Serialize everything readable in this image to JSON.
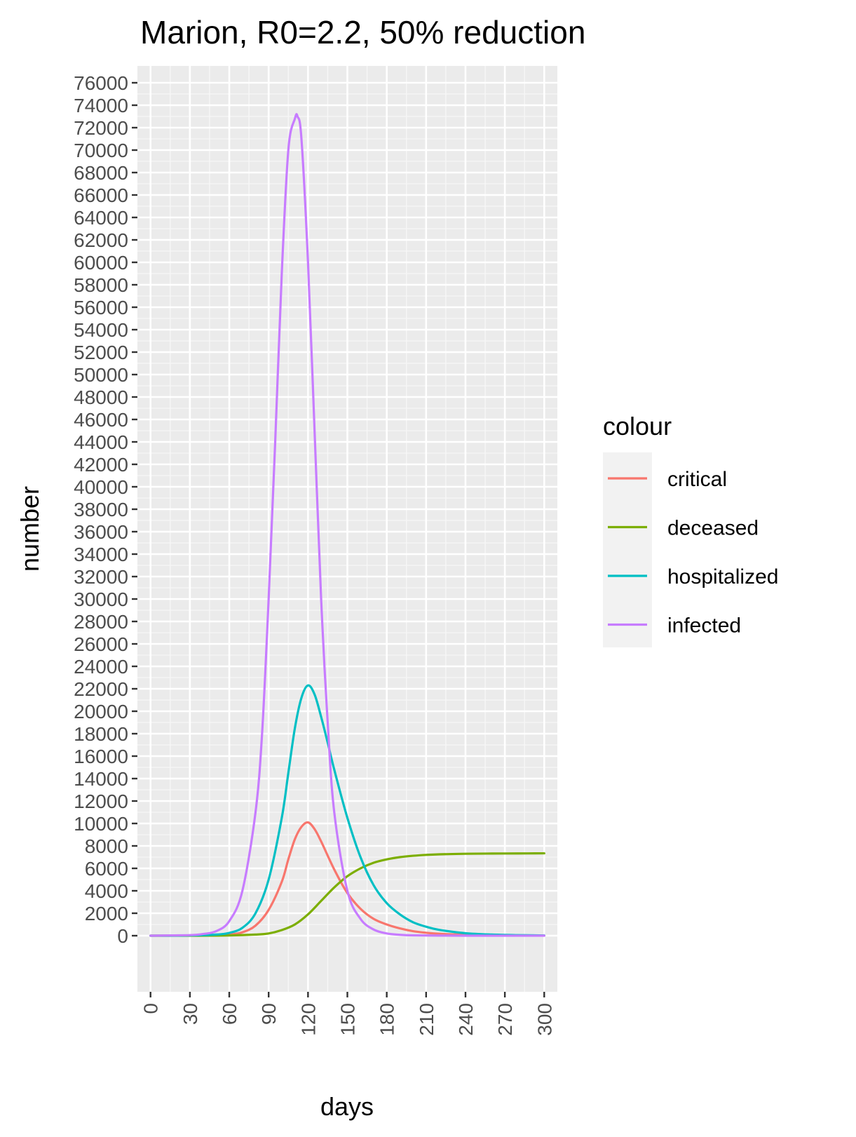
{
  "chart_data": {
    "type": "line",
    "title": "Marion, R0=2.2, 50% reduction",
    "xlabel": "days",
    "ylabel": "number",
    "xlim": [
      -10,
      310
    ],
    "ylim": [
      -5000,
      77500
    ],
    "x_ticks": [
      0,
      30,
      60,
      90,
      120,
      150,
      180,
      210,
      240,
      270,
      300
    ],
    "x_tick_labels": [
      "0",
      "30",
      "60",
      "90",
      "120",
      "150",
      "180",
      "210",
      "240",
      "270",
      "300"
    ],
    "y_ticks": [
      0,
      2000,
      4000,
      6000,
      8000,
      10000,
      12000,
      14000,
      16000,
      18000,
      20000,
      22000,
      24000,
      26000,
      28000,
      30000,
      32000,
      34000,
      36000,
      38000,
      40000,
      42000,
      44000,
      46000,
      48000,
      50000,
      52000,
      54000,
      56000,
      58000,
      60000,
      62000,
      64000,
      66000,
      68000,
      70000,
      72000,
      74000,
      76000
    ],
    "y_tick_labels": [
      "0",
      "2000",
      "4000",
      "6000",
      "8000",
      "10000",
      "12000",
      "14000",
      "16000",
      "18000",
      "20000",
      "22000",
      "24000",
      "26000",
      "28000",
      "30000",
      "32000",
      "34000",
      "36000",
      "38000",
      "40000",
      "42000",
      "44000",
      "46000",
      "48000",
      "50000",
      "52000",
      "54000",
      "56000",
      "58000",
      "60000",
      "62000",
      "64000",
      "66000",
      "68000",
      "70000",
      "72000",
      "74000",
      "76000"
    ],
    "grid": true,
    "legend": {
      "title": "colour",
      "position": "right",
      "entries": [
        "critical",
        "deceased",
        "hospitalized",
        "infected"
      ]
    },
    "series": [
      {
        "name": "critical",
        "color": "#F8766D",
        "x": [
          0,
          30,
          50,
          60,
          70,
          80,
          90,
          100,
          105,
          110,
          115,
          120,
          125,
          130,
          140,
          150,
          160,
          170,
          180,
          190,
          200,
          210,
          220,
          240,
          260,
          280,
          300
        ],
        "y": [
          0,
          10,
          40,
          100,
          300,
          900,
          2300,
          4800,
          6800,
          8600,
          9700,
          10100,
          9500,
          8400,
          5900,
          3800,
          2400,
          1500,
          1000,
          650,
          400,
          260,
          170,
          80,
          40,
          20,
          10
        ]
      },
      {
        "name": "deceased",
        "color": "#7CAE00",
        "x": [
          0,
          30,
          60,
          80,
          90,
          100,
          110,
          120,
          130,
          140,
          150,
          160,
          170,
          180,
          190,
          200,
          210,
          220,
          240,
          260,
          280,
          300
        ],
        "y": [
          0,
          0,
          20,
          100,
          200,
          500,
          1000,
          1900,
          3100,
          4300,
          5300,
          6000,
          6500,
          6800,
          7000,
          7120,
          7200,
          7250,
          7300,
          7320,
          7330,
          7340
        ]
      },
      {
        "name": "hospitalized",
        "color": "#00BFC4",
        "x": [
          0,
          30,
          50,
          60,
          70,
          80,
          90,
          100,
          105,
          110,
          115,
          120,
          125,
          130,
          135,
          140,
          150,
          160,
          170,
          180,
          190,
          200,
          210,
          220,
          240,
          260,
          280,
          300
        ],
        "y": [
          0,
          20,
          100,
          250,
          700,
          2000,
          5000,
          10500,
          14500,
          18500,
          21200,
          22300,
          21500,
          19500,
          17200,
          14800,
          10500,
          7000,
          4500,
          2900,
          1900,
          1200,
          800,
          520,
          220,
          100,
          50,
          20
        ]
      },
      {
        "name": "infected",
        "color": "#C77CFF",
        "x": [
          0,
          30,
          40,
          50,
          60,
          70,
          80,
          85,
          90,
          95,
          100,
          105,
          110,
          112,
          115,
          120,
          125,
          130,
          135,
          140,
          150,
          160,
          170,
          180,
          190,
          200,
          220,
          240,
          270,
          300
        ],
        "y": [
          0,
          50,
          150,
          400,
          1300,
          4000,
          11000,
          18000,
          30000,
          44000,
          59000,
          70000,
          72800,
          73000,
          71000,
          60000,
          45000,
          30000,
          19000,
          11000,
          4000,
          1500,
          550,
          200,
          80,
          30,
          10,
          0,
          0,
          0
        ]
      }
    ]
  }
}
